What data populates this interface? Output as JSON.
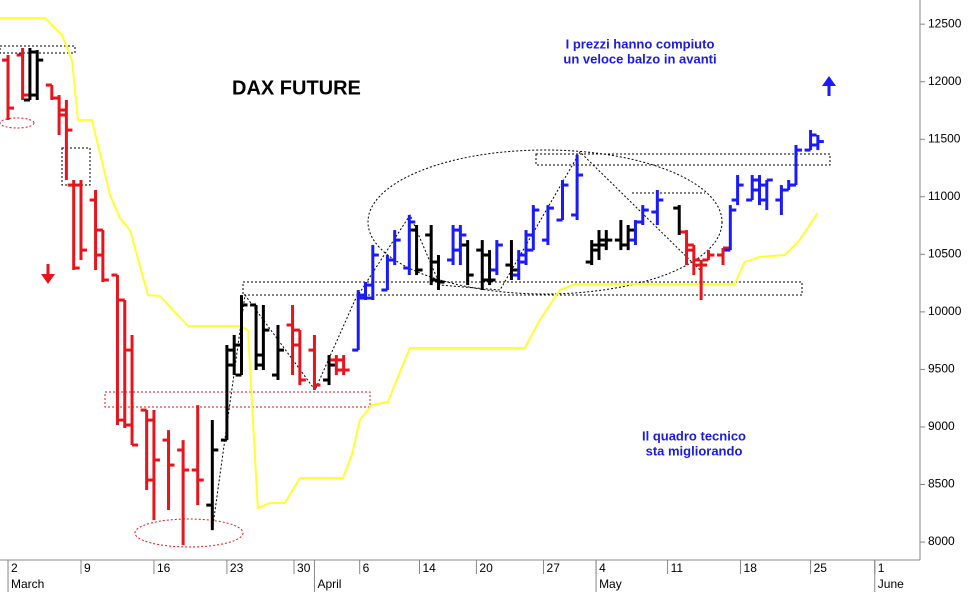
{
  "chart_data": {
    "type": "ohlc",
    "title": "DAX FUTURE",
    "annotations": [
      "I prezzi hanno compiuto",
      "un veloce balzo in avanti",
      "Il quadro tecnico",
      "sta migliorando"
    ],
    "x": [
      0,
      1,
      1.5,
      2,
      3,
      3.5,
      4,
      4.5,
      5,
      6,
      6.5,
      7.5,
      8,
      8.5,
      9.5,
      10,
      11,
      12,
      13,
      14,
      15,
      15.5,
      16,
      17,
      17.5,
      18.5,
      19.5,
      20,
      21,
      22,
      22.5,
      23,
      24,
      24.5,
      25,
      26,
      26.5,
      27.5,
      28,
      29,
      29.5,
      30.5,
      31,
      31.5,
      32.5,
      33,
      33.5,
      34.5,
      35,
      35.5,
      36,
      37,
      38,
      39,
      40,
      40.5,
      41,
      42,
      42.5,
      43,
      43.5,
      44.5,
      46,
      46.5,
      47,
      47.5,
      48,
      49,
      49.5,
      50,
      51,
      51.5,
      52,
      53,
      53.5,
      54,
      55,
      55.5
    ],
    "open": [
      12188,
      12232,
      11841,
      11884,
      11971,
      11858,
      11711,
      11102,
      11102,
      10972,
      10711,
      10320,
      10103,
      9668,
      9147,
      9060,
      8886,
      8800,
      8626,
      8321,
      8886,
      9538,
      9451,
      10060,
      9625,
      9451,
      9886,
      9842,
      9668,
      9408,
      9582,
      9582,
      9668,
      10120,
      10120,
      10190,
      10451,
      10381,
      10711,
      10668,
      10433,
      10451,
      10537,
      10581,
      10537,
      10494,
      10364,
      10407,
      10320,
      10433,
      10537,
      10624,
      10798,
      10842,
      10433,
      10537,
      10581,
      10624,
      10581,
      10624,
      10781,
      10868,
      10902,
      10694,
      10581,
      10407,
      10451,
      10494,
      10537,
      10972,
      10972,
      11059,
      10972,
      10972,
      11059,
      11102,
      11406,
      11450
    ],
    "high": [
      12232,
      12293,
      12293,
      12275,
      11971,
      11884,
      11841,
      11146,
      11146,
      11059,
      10711,
      10320,
      10103,
      9799,
      9147,
      9147,
      8973,
      8886,
      9190,
      9060,
      9712,
      9799,
      10146,
      10060,
      10060,
      9886,
      10060,
      9842,
      9799,
      9625,
      9625,
      9625,
      10190,
      10259,
      10581,
      10494,
      10711,
      10842,
      10755,
      10755,
      10494,
      10755,
      10755,
      10624,
      10624,
      10537,
      10624,
      10624,
      10537,
      10711,
      10928,
      10928,
      11146,
      11365,
      10624,
      10711,
      10711,
      10798,
      10755,
      10798,
      10928,
      11059,
      10928,
      10711,
      10581,
      10451,
      10537,
      10555,
      10928,
      11189,
      11189,
      11189,
      11146,
      11102,
      11146,
      11450,
      11580,
      11537
    ],
    "low": [
      11667,
      11841,
      11841,
      11841,
      11841,
      11537,
      11146,
      10364,
      10451,
      10364,
      10259,
      9017,
      8991,
      8843,
      8452,
      8191,
      8278,
      7974,
      8321,
      8104,
      8886,
      9451,
      9451,
      9495,
      9495,
      9408,
      9451,
      9364,
      9321,
      9364,
      9451,
      9451,
      9668,
      10103,
      10103,
      10190,
      10407,
      10320,
      10320,
      10233,
      10190,
      10407,
      10407,
      10233,
      10190,
      10233,
      10320,
      10277,
      10277,
      10407,
      10537,
      10581,
      10798,
      10798,
      10407,
      10451,
      10537,
      10537,
      10537,
      10581,
      10755,
      10755,
      10668,
      10407,
      10320,
      10103,
      10451,
      10407,
      10537,
      10928,
      10972,
      10928,
      10885,
      10842,
      11059,
      11102,
      11406,
      11406
    ],
    "close": [
      11771,
      11884,
      12258,
      12188,
      11858,
      11754,
      11580,
      10381,
      10537,
      10494,
      10277,
      9060,
      9017,
      8843,
      8539,
      8713,
      8669,
      8626,
      8539,
      8800,
      9668,
      9712,
      10060,
      9538,
      9842,
      9668,
      9712,
      9408,
      9364,
      9538,
      9495,
      9495,
      10146,
      10233,
      10494,
      10451,
      10624,
      10781,
      10364,
      10277,
      10259,
      10711,
      10668,
      10320,
      10277,
      10277,
      10581,
      10364,
      10494,
      10668,
      10885,
      10902,
      11102,
      11189,
      10581,
      10624,
      10624,
      10581,
      10711,
      10781,
      10885,
      10972,
      10694,
      10537,
      10451,
      10407,
      10494,
      10555,
      10885,
      11102,
      11146,
      11102,
      11146,
      11059,
      11102,
      11406,
      11537,
      11480
    ],
    "colors": [
      "#e8141c",
      "#e8141c",
      "#000000",
      "#000000",
      "#e8141c",
      "#e8141c",
      "#e8141c",
      "#e8141c",
      "#e8141c",
      "#e8141c",
      "#e8141c",
      "#e8141c",
      "#e8141c",
      "#e8141c",
      "#e8141c",
      "#e8141c",
      "#e8141c",
      "#e8141c",
      "#e8141c",
      "#000000",
      "#000000",
      "#000000",
      "#000000",
      "#000000",
      "#000000",
      "#000000",
      "#e8141c",
      "#e8141c",
      "#e8141c",
      "#000000",
      "#e8141c",
      "#e8141c",
      "#1a1aff",
      "#1a1aff",
      "#1a1aff",
      "#1a1aff",
      "#1a1aff",
      "#1a1aff",
      "#000000",
      "#000000",
      "#000000",
      "#1a1aff",
      "#1a1aff",
      "#000000",
      "#000000",
      "#000000",
      "#1a1aff",
      "#000000",
      "#1a1aff",
      "#1a1aff",
      "#1a1aff",
      "#1a1aff",
      "#1a1aff",
      "#1a1aff",
      "#000000",
      "#000000",
      "#000000",
      "#000000",
      "#000000",
      "#1a1aff",
      "#1a1aff",
      "#1a1aff",
      "#000000",
      "#e8141c",
      "#e8141c",
      "#e8141c",
      "#e8141c",
      "#e8141c",
      "#1a1aff",
      "#1a1aff",
      "#1a1aff",
      "#1a1aff",
      "#1a1aff",
      "#1a1aff",
      "#1a1aff",
      "#1a1aff",
      "#1a1aff",
      "#1a1aff"
    ],
    "line": {
      "color": "#ffff33",
      "x": [
        -0.55,
        2.53,
        3.7,
        4.38,
        4.79,
        5.75,
        6.99,
        7.67,
        8.36,
        9.59,
        10.41,
        12.33,
        15.89,
        16.44,
        17.12,
        17.95,
        18.97,
        20.0,
        22.95,
        23.56,
        24.11,
        24.93,
        26.03,
        27.53,
        35.41,
        36.44,
        37.81,
        38.84,
        49.79,
        50.48,
        51.51,
        53.22,
        54.25,
        55.48
      ],
      "values": [
        12554,
        12554,
        12406,
        12188,
        11667,
        11667,
        11015,
        10814,
        10711,
        10146,
        10138,
        9877,
        9877,
        9842,
        8295,
        8339,
        8339,
        8556,
        8556,
        8756,
        9060,
        9191,
        9217,
        9686,
        9686,
        9929,
        10190,
        10242,
        10242,
        10433,
        10477,
        10494,
        10624,
        10859
      ]
    },
    "xlim": [
      -0.55,
      62.5
    ],
    "ylim": [
      7844,
      12710
    ],
    "yticks": [
      8000,
      8500,
      9000,
      9500,
      10000,
      10500,
      11000,
      11500,
      12000,
      12500
    ],
    "xticks": [
      {
        "value": 0,
        "label": "2"
      },
      {
        "value": 5,
        "label": "9"
      },
      {
        "value": 10,
        "label": "16"
      },
      {
        "value": 15,
        "label": "23"
      },
      {
        "value": 19.6,
        "label": "30"
      },
      {
        "value": 24.1,
        "label": "6"
      },
      {
        "value": 28.2,
        "label": "14"
      },
      {
        "value": 32.1,
        "label": "20"
      },
      {
        "value": 36.7,
        "label": "27"
      },
      {
        "value": 40.3,
        "label": "4"
      },
      {
        "value": 45.2,
        "label": "11"
      },
      {
        "value": 50.2,
        "label": "18"
      },
      {
        "value": 55,
        "label": "25"
      },
      {
        "value": 59.4,
        "label": "1"
      }
    ],
    "months": [
      {
        "value": 0,
        "label": "March"
      },
      {
        "value": 21,
        "label": "April"
      },
      {
        "value": 40.3,
        "label": "May"
      },
      {
        "value": 59.4,
        "label": "June"
      }
    ]
  }
}
